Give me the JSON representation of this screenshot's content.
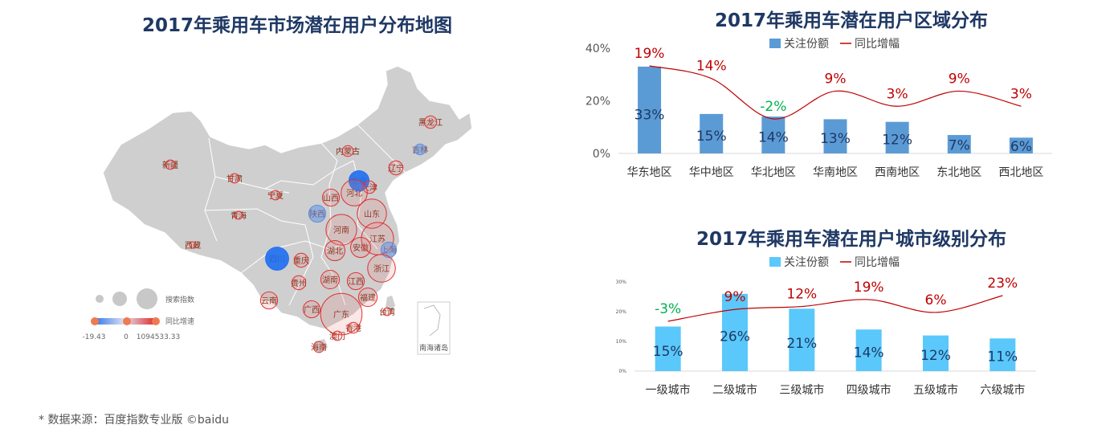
{
  "map": {
    "title": "2017年乘用车市场潜在用户分布地图",
    "legend": {
      "size_label": "搜索指数",
      "color_label": "同比增速",
      "min": "-19.43",
      "mid": "0",
      "max": "1094533.33"
    },
    "inset_label": "南海诸岛",
    "provinces": [
      {
        "name": "黑龙江",
        "size": 5,
        "growth": "pos"
      },
      {
        "name": "吉林",
        "size": 4,
        "growth": "neg"
      },
      {
        "name": "辽宁",
        "size": 6,
        "growth": "pos"
      },
      {
        "name": "内蒙古",
        "size": 4,
        "growth": "pos"
      },
      {
        "name": "新疆",
        "size": 3,
        "growth": "pos"
      },
      {
        "name": "甘肃",
        "size": 3,
        "growth": "pos"
      },
      {
        "name": "北京",
        "size": 10,
        "growth": "neg_strong"
      },
      {
        "name": "天津",
        "size": 5,
        "growth": "pos"
      },
      {
        "name": "宁夏",
        "size": 3,
        "growth": "pos"
      },
      {
        "name": "山西",
        "size": 8,
        "growth": "pos"
      },
      {
        "name": "河北",
        "size": 14,
        "growth": "pos"
      },
      {
        "name": "山东",
        "size": 16,
        "growth": "pos"
      },
      {
        "name": "青海",
        "size": 2,
        "growth": "pos"
      },
      {
        "name": "陕西",
        "size": 8,
        "growth": "neg"
      },
      {
        "name": "河南",
        "size": 17,
        "growth": "pos"
      },
      {
        "name": "江苏",
        "size": 18,
        "growth": "pos"
      },
      {
        "name": "上海",
        "size": 7,
        "growth": "neg"
      },
      {
        "name": "西藏",
        "size": 1,
        "growth": "pos"
      },
      {
        "name": "四川",
        "size": 12,
        "growth": "neg_strong"
      },
      {
        "name": "重庆",
        "size": 6,
        "growth": "pos"
      },
      {
        "name": "湖北",
        "size": 10,
        "growth": "pos"
      },
      {
        "name": "安徽",
        "size": 10,
        "growth": "pos"
      },
      {
        "name": "浙江",
        "size": 15,
        "growth": "pos"
      },
      {
        "name": "贵州",
        "size": 6,
        "growth": "pos"
      },
      {
        "name": "湖南",
        "size": 9,
        "growth": "pos"
      },
      {
        "name": "江西",
        "size": 8,
        "growth": "pos"
      },
      {
        "name": "福建",
        "size": 9,
        "growth": "pos"
      },
      {
        "name": "云南",
        "size": 8,
        "growth": "pos"
      },
      {
        "name": "广西",
        "size": 8,
        "growth": "pos"
      },
      {
        "name": "广东",
        "size": 24,
        "growth": "pos"
      },
      {
        "name": "台湾",
        "size": 2,
        "growth": "pos"
      },
      {
        "name": "香港",
        "size": 4,
        "growth": "pos"
      },
      {
        "name": "澳门",
        "size": 3,
        "growth": "pos"
      },
      {
        "name": "海南",
        "size": 4,
        "growth": "pos"
      }
    ]
  },
  "chart_data": [
    {
      "type": "bar",
      "title": "2017年乘用车潜在用户区域分布",
      "categories": [
        "华东地区",
        "华中地区",
        "华北地区",
        "华南地区",
        "西南地区",
        "东北地区",
        "西北地区"
      ],
      "series": [
        {
          "name": "关注份额",
          "values": [
            33,
            15,
            14,
            13,
            12,
            7,
            6
          ],
          "labels": [
            "33%",
            "15%",
            "14%",
            "13%",
            "12%",
            "7%",
            "6%"
          ],
          "color": "#5b9bd5"
        },
        {
          "name": "同比增幅",
          "values": [
            19,
            14,
            -2,
            9,
            3,
            9,
            3
          ],
          "labels": [
            "19%",
            "14%",
            "-2%",
            "9%",
            "3%",
            "9%",
            "3%"
          ],
          "color": "#c00000"
        }
      ],
      "yticks": [
        "0%",
        "20%",
        "40%"
      ],
      "ylim": [
        0,
        40
      ],
      "legend": "top",
      "negative_color": "#00b050"
    },
    {
      "type": "bar",
      "title": "2017年乘用车潜在用户城市级别分布",
      "categories": [
        "一级城市",
        "二级城市",
        "三级城市",
        "四级城市",
        "五级城市",
        "六级城市"
      ],
      "series": [
        {
          "name": "关注份额",
          "values": [
            15,
            26,
            21,
            14,
            12,
            11
          ],
          "labels": [
            "15%",
            "26%",
            "21%",
            "14%",
            "12%",
            "11%"
          ],
          "color": "#5ac8fa"
        },
        {
          "name": "同比增幅",
          "values": [
            -3,
            9,
            12,
            19,
            6,
            23
          ],
          "labels": [
            "-3%",
            "9%",
            "12%",
            "19%",
            "6%",
            "23%"
          ],
          "color": "#c00000"
        }
      ],
      "yticks": [
        "0%",
        "10%",
        "20%",
        "30%"
      ],
      "ylim": [
        0,
        30
      ],
      "legend": "top",
      "negative_color": "#00b050"
    }
  ],
  "source": "* 数据来源：百度指数专业版 ©baidu"
}
